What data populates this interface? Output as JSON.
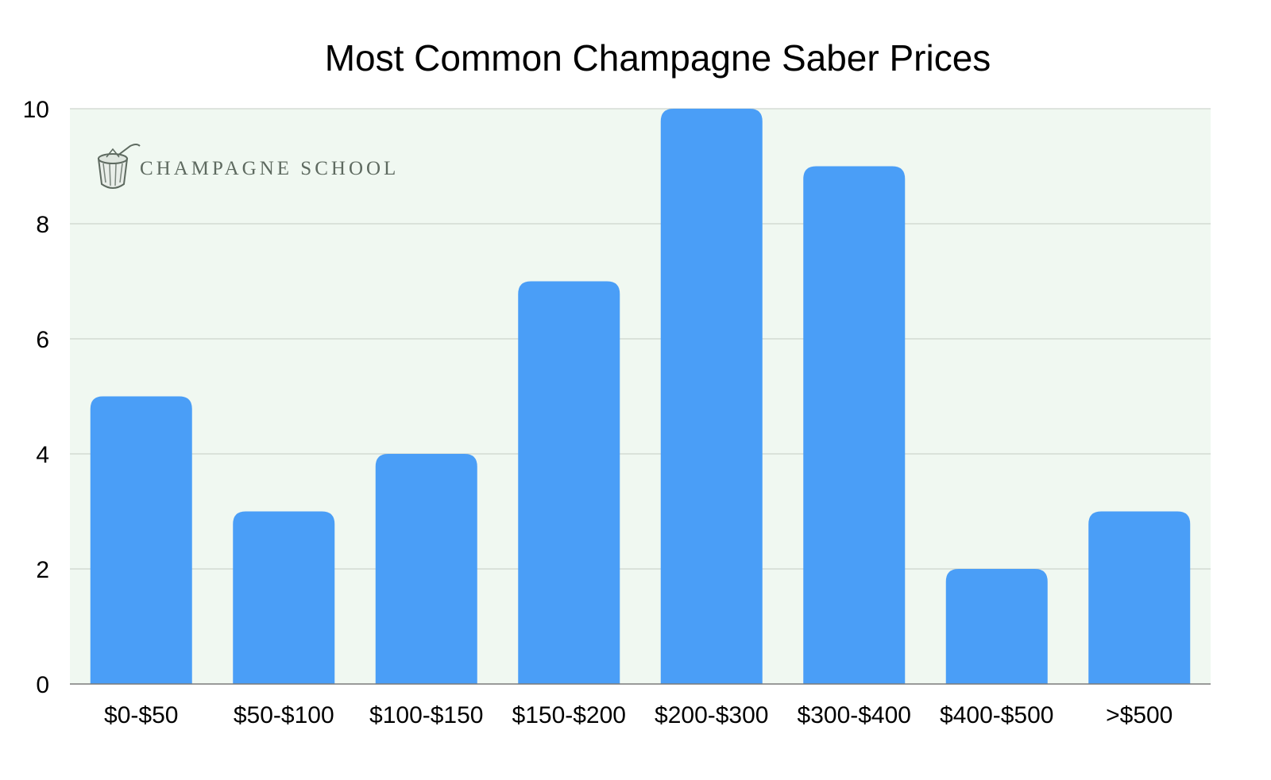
{
  "chart_data": {
    "type": "bar",
    "title": "Most Common Champagne Saber Prices",
    "categories": [
      "$0-$50",
      "$50-$100",
      "$100-$150",
      "$150-$200",
      "$200-$300",
      "$300-$400",
      "$400-$500",
      ">$500"
    ],
    "values": [
      5,
      3,
      4,
      7,
      10,
      9,
      2,
      3
    ],
    "ylim": [
      0,
      10
    ],
    "yticks": [
      0,
      2,
      4,
      6,
      8,
      10
    ],
    "xlabel": "",
    "ylabel": "",
    "grid": true,
    "legend": "none",
    "colors": {
      "bar": "#4a9ef7",
      "plot_background": "#f0f8f1",
      "grid": "#c3cbc4",
      "axis": "#7a7a7a"
    }
  },
  "watermark": {
    "text": "CHAMPAGNE SCHOOL",
    "icon": "champagne-bucket-icon"
  }
}
